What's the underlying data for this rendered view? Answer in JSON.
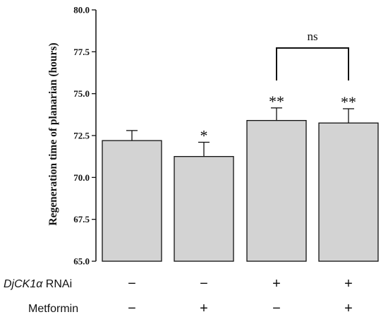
{
  "chart_data": {
    "type": "bar",
    "ylabel": "Regeneration time of planarian (hours)",
    "ylim": [
      65.0,
      80.0
    ],
    "yticks": [
      "65.0",
      "67.5",
      "70.0",
      "72.5",
      "75.0",
      "77.5",
      "80.0"
    ],
    "ytick_values": [
      65.0,
      67.5,
      70.0,
      72.5,
      75.0,
      77.5,
      80.0
    ],
    "bar_color": "#d3d3d3",
    "grid": false,
    "values": [
      72.2,
      71.25,
      73.4,
      73.25
    ],
    "errors": [
      0.6,
      0.85,
      0.75,
      0.85
    ],
    "significance": [
      "",
      "*",
      "**",
      "**"
    ],
    "comparison": {
      "from": 2,
      "to": 3,
      "label": "ns"
    },
    "conditions": [
      {
        "name_italic": "DjCK1α",
        "name_rest": " RNAi",
        "signs": [
          "−",
          "−",
          "+",
          "+"
        ]
      },
      {
        "name_italic": "",
        "name_rest": "Metformin",
        "signs": [
          "−",
          "+",
          "−",
          "+"
        ]
      }
    ]
  }
}
